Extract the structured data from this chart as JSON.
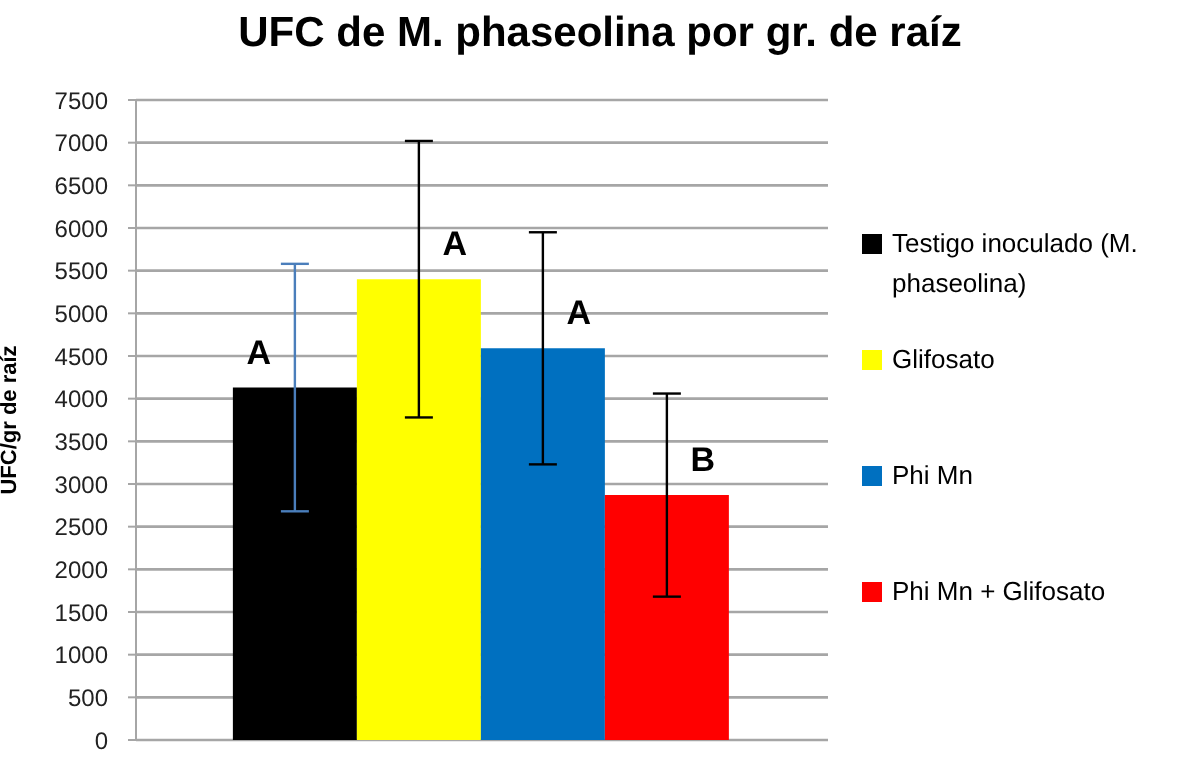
{
  "chart_data": {
    "type": "bar",
    "title": "UFC de M. phaseolina por gr. de raíz",
    "ylabel": "UFC/gr de raíz",
    "categories": [
      null
    ],
    "series": [
      {
        "name": "Testigo inoculado (M. phaseolina)",
        "color": "#000000",
        "values": [
          4130
        ],
        "errors": [
          1450
        ]
      },
      {
        "name": "Glifosato",
        "color": "#ffff00",
        "values": [
          5400
        ],
        "errors": [
          1620
        ]
      },
      {
        "name": "Phi Mn",
        "color": "#0070c0",
        "values": [
          4590
        ],
        "errors": [
          1360
        ]
      },
      {
        "name": "Phi Mn + Glifosato",
        "color": "#ff0000",
        "values": [
          2870
        ],
        "errors": [
          1190
        ]
      }
    ],
    "annotations": [
      "A",
      "A",
      "A",
      "B"
    ],
    "ylim": [
      0,
      7500
    ],
    "yticks": [
      0,
      500,
      1000,
      1500,
      2000,
      2500,
      3000,
      3500,
      4000,
      4500,
      5000,
      5500,
      6000,
      6500,
      7000,
      7500
    ],
    "grid": "y",
    "legend": "right"
  }
}
